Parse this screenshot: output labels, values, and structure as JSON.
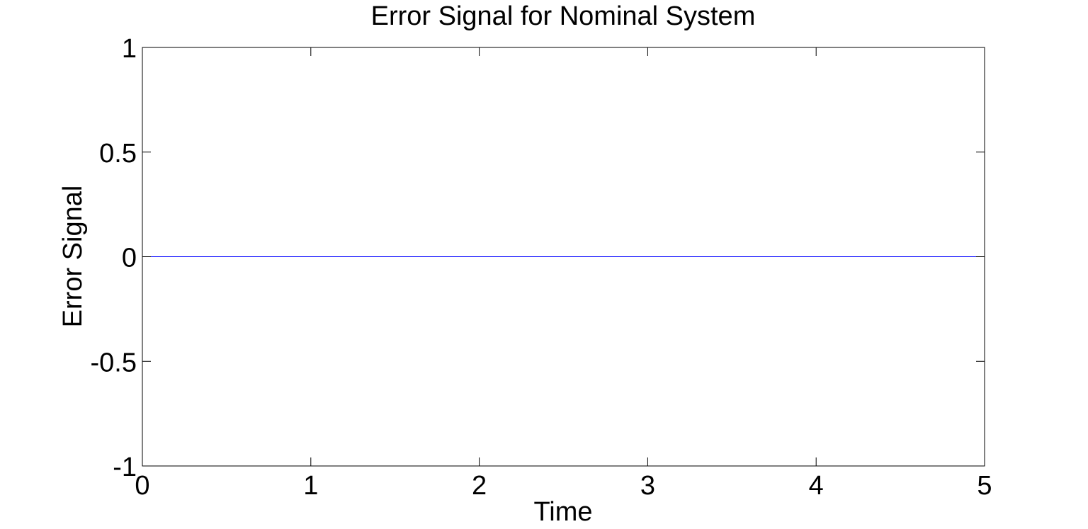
{
  "chart_data": {
    "type": "line",
    "title": "Error Signal for Nominal System",
    "xlabel": "Time",
    "ylabel": "Error Signal",
    "xlim": [
      0,
      5
    ],
    "ylim": [
      -1,
      1
    ],
    "xticks": [
      0,
      1,
      2,
      3,
      4,
      5
    ],
    "xtick_labels": [
      "0",
      "1",
      "2",
      "3",
      "4",
      "5"
    ],
    "yticks": [
      -1,
      -0.5,
      0,
      0.5,
      1
    ],
    "ytick_labels": [
      "-1",
      "-0.5",
      "0",
      "0.5",
      "1"
    ],
    "grid": false,
    "series": [
      {
        "x": [
          0,
          5
        ],
        "values": [
          0,
          0
        ],
        "color": "#0000ff"
      }
    ]
  }
}
